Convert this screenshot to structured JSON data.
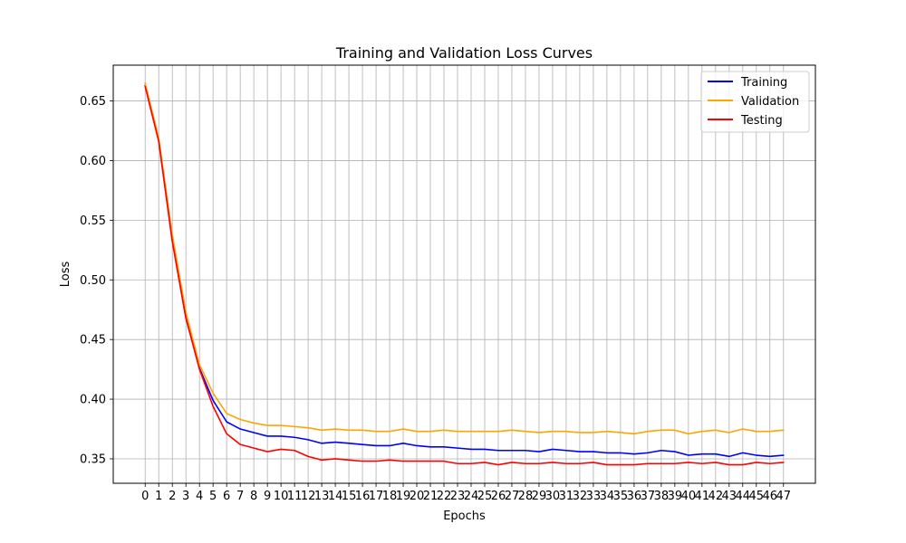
{
  "chart_data": {
    "type": "line",
    "title": "Training and Validation Loss Curves",
    "xlabel": "Epochs",
    "ylabel": "Loss",
    "x": [
      0,
      1,
      2,
      3,
      4,
      5,
      6,
      7,
      8,
      9,
      10,
      11,
      12,
      13,
      14,
      15,
      16,
      17,
      18,
      19,
      20,
      21,
      22,
      23,
      24,
      25,
      26,
      27,
      28,
      29,
      30,
      31,
      32,
      33,
      34,
      35,
      36,
      37,
      38,
      39,
      40,
      41,
      42,
      43,
      44,
      45,
      46,
      47
    ],
    "xlim": [
      -2.35,
      49.35
    ],
    "ylim": [
      0.3295,
      0.68
    ],
    "yticks": [
      0.35,
      0.4,
      0.45,
      0.5,
      0.55,
      0.6,
      0.65
    ],
    "grid": true,
    "legend_position": "top-right",
    "series": [
      {
        "name": "Training",
        "color": "#0000ff",
        "values": [
          0.663,
          0.617,
          0.533,
          0.468,
          0.426,
          0.399,
          0.381,
          0.375,
          0.372,
          0.369,
          0.369,
          0.368,
          0.366,
          0.363,
          0.364,
          0.363,
          0.362,
          0.361,
          0.361,
          0.363,
          0.361,
          0.36,
          0.36,
          0.359,
          0.358,
          0.358,
          0.357,
          0.357,
          0.357,
          0.356,
          0.358,
          0.357,
          0.356,
          0.356,
          0.355,
          0.355,
          0.354,
          0.355,
          0.357,
          0.356,
          0.353,
          0.354,
          0.354,
          0.352,
          0.355,
          0.353,
          0.352,
          0.353
        ]
      },
      {
        "name": "Validation",
        "color": "#ffa500",
        "values": [
          0.665,
          0.619,
          0.538,
          0.473,
          0.429,
          0.405,
          0.388,
          0.383,
          0.38,
          0.378,
          0.378,
          0.377,
          0.376,
          0.374,
          0.375,
          0.374,
          0.374,
          0.373,
          0.373,
          0.375,
          0.373,
          0.373,
          0.374,
          0.373,
          0.373,
          0.373,
          0.373,
          0.374,
          0.373,
          0.372,
          0.373,
          0.373,
          0.372,
          0.372,
          0.373,
          0.372,
          0.371,
          0.373,
          0.374,
          0.374,
          0.371,
          0.373,
          0.374,
          0.372,
          0.375,
          0.373,
          0.373,
          0.374
        ]
      },
      {
        "name": "Testing",
        "color": "#ff0000",
        "values": [
          0.662,
          0.616,
          0.532,
          0.468,
          0.425,
          0.394,
          0.371,
          0.362,
          0.359,
          0.356,
          0.358,
          0.357,
          0.352,
          0.349,
          0.35,
          0.349,
          0.348,
          0.348,
          0.349,
          0.348,
          0.348,
          0.348,
          0.348,
          0.346,
          0.346,
          0.347,
          0.345,
          0.347,
          0.346,
          0.346,
          0.347,
          0.346,
          0.346,
          0.347,
          0.345,
          0.345,
          0.345,
          0.346,
          0.346,
          0.346,
          0.347,
          0.346,
          0.347,
          0.345,
          0.345,
          0.347,
          0.346,
          0.347
        ]
      }
    ]
  }
}
